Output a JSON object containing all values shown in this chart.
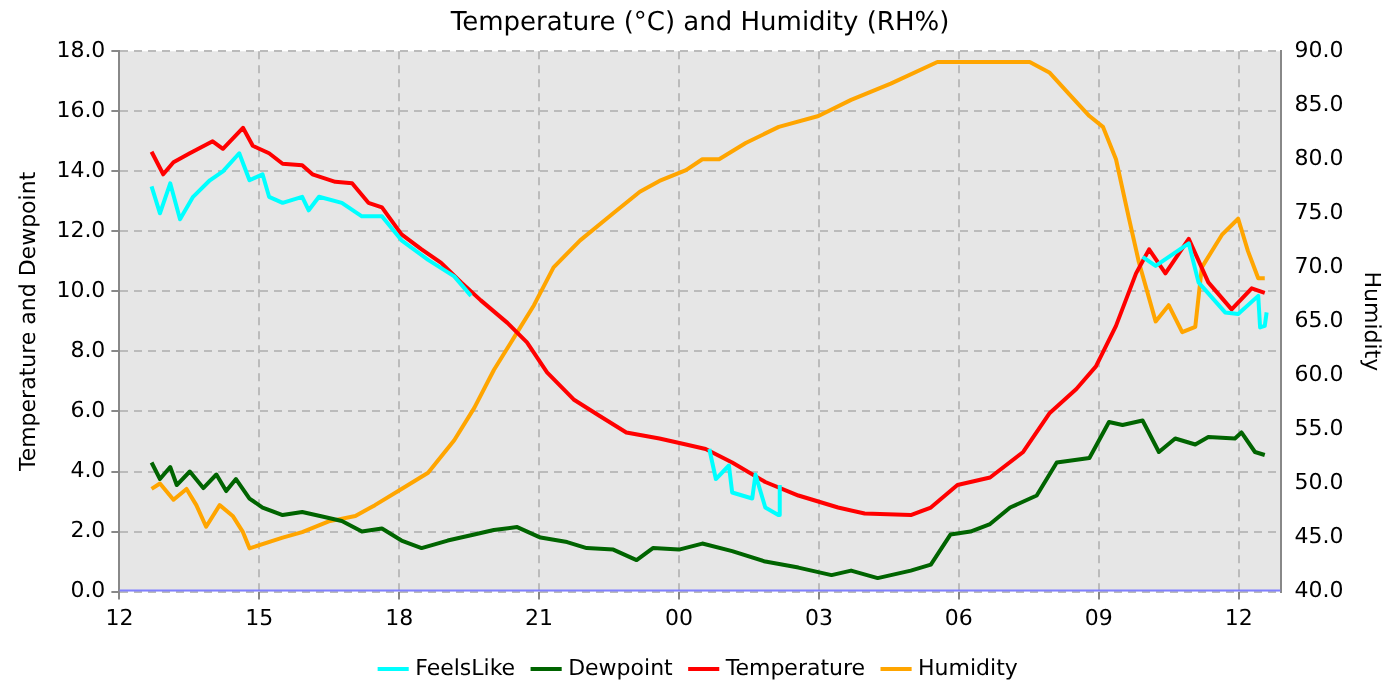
{
  "chart_data": {
    "type": "line",
    "title": "Temperature (°C) and Humidity (RH%)",
    "ylabel": "Temperature and Dewpoint",
    "y2label": "Humidity",
    "xlim": [
      12,
      36.9
    ],
    "xticks": [
      {
        "value": 12,
        "label": "12"
      },
      {
        "value": 15,
        "label": "15"
      },
      {
        "value": 18,
        "label": "18"
      },
      {
        "value": 21,
        "label": "21"
      },
      {
        "value": 24,
        "label": "00"
      },
      {
        "value": 27,
        "label": "03"
      },
      {
        "value": 30,
        "label": "06"
      },
      {
        "value": 33,
        "label": "09"
      },
      {
        "value": 36,
        "label": "12"
      }
    ],
    "ylim": [
      0,
      18
    ],
    "yticks": [
      {
        "value": 0,
        "label": "0.0"
      },
      {
        "value": 2,
        "label": "2.0"
      },
      {
        "value": 4,
        "label": "4.0"
      },
      {
        "value": 6,
        "label": "6.0"
      },
      {
        "value": 8,
        "label": "8.0"
      },
      {
        "value": 10,
        "label": "10.0"
      },
      {
        "value": 12,
        "label": "12.0"
      },
      {
        "value": 14,
        "label": "14.0"
      },
      {
        "value": 16,
        "label": "16.0"
      },
      {
        "value": 18,
        "label": "18.0"
      }
    ],
    "y2lim": [
      40,
      90
    ],
    "y2ticks": [
      {
        "value": 40,
        "label": "40.0"
      },
      {
        "value": 45,
        "label": "45.0"
      },
      {
        "value": 50,
        "label": "50.0"
      },
      {
        "value": 55,
        "label": "55.0"
      },
      {
        "value": 60,
        "label": "60.0"
      },
      {
        "value": 65,
        "label": "65.0"
      },
      {
        "value": 70,
        "label": "70.0"
      },
      {
        "value": 75,
        "label": "75.0"
      },
      {
        "value": 80,
        "label": "80.0"
      },
      {
        "value": 85,
        "label": "85.0"
      },
      {
        "value": 90,
        "label": "90.0"
      }
    ],
    "grid": true,
    "legend": "bottom",
    "marker": "none",
    "line_style": "solid",
    "series": [
      {
        "name": "FeelsLike",
        "color": "#00ffff",
        "x": [
          12.69,
          12.87,
          13.09,
          13.3,
          13.58,
          13.94,
          14.22,
          14.57,
          14.79,
          15.07,
          15.21,
          15.5,
          15.92,
          16.06,
          16.28,
          16.77,
          17.2,
          17.63,
          18.05,
          18.62,
          19.18,
          19.54,
          22,
          24.65,
          24.79,
          25.07,
          25.14,
          25.57,
          25.64,
          25.85,
          26.13,
          26.16,
          30,
          33.94,
          34.22,
          34.93,
          35.14,
          35.71,
          35.99,
          36.42,
          36.46,
          36.56,
          36.6
        ],
        "values": [
          13.5,
          12.6,
          13.6,
          12.4,
          13.15,
          13.7,
          14.0,
          14.6,
          13.7,
          13.9,
          13.15,
          12.95,
          13.15,
          12.7,
          13.15,
          12.95,
          12.5,
          12.5,
          11.7,
          11.05,
          10.5,
          9.85,
          null,
          4.75,
          3.75,
          4.2,
          3.3,
          3.1,
          3.9,
          2.8,
          2.55,
          3.55,
          null,
          11.15,
          10.85,
          11.6,
          10.3,
          9.3,
          9.25,
          9.85,
          8.8,
          8.85,
          9.3
        ]
      },
      {
        "name": "Dewpoint",
        "color": "#006400",
        "x": [
          12.69,
          12.87,
          13.09,
          13.23,
          13.51,
          13.8,
          14.08,
          14.29,
          14.5,
          14.79,
          15.07,
          15.5,
          15.92,
          16.35,
          16.77,
          17.2,
          17.63,
          18.05,
          18.48,
          19.04,
          19.61,
          20.03,
          20.53,
          21.03,
          21.6,
          22.02,
          22.59,
          23.09,
          23.44,
          24.0,
          24.5,
          25.14,
          25.85,
          26.56,
          27.27,
          27.69,
          28.26,
          28.97,
          29.4,
          29.82,
          30.25,
          30.67,
          31.1,
          31.67,
          32.1,
          32.8,
          33.22,
          33.51,
          33.94,
          34.29,
          34.64,
          35.07,
          35.35,
          35.92,
          36.06,
          36.35,
          36.56
        ],
        "values": [
          4.3,
          3.75,
          4.15,
          3.55,
          4.0,
          3.45,
          3.9,
          3.35,
          3.75,
          3.1,
          2.8,
          2.55,
          2.65,
          2.5,
          2.35,
          2.0,
          2.1,
          1.7,
          1.45,
          1.7,
          1.9,
          2.05,
          2.15,
          1.8,
          1.65,
          1.45,
          1.4,
          1.05,
          1.45,
          1.4,
          1.6,
          1.35,
          1.0,
          0.8,
          0.55,
          0.7,
          0.45,
          0.7,
          0.9,
          1.9,
          2.0,
          2.25,
          2.8,
          3.2,
          4.3,
          4.45,
          5.65,
          5.55,
          5.7,
          4.65,
          5.1,
          4.9,
          5.15,
          5.1,
          5.3,
          4.65,
          4.55
        ]
      },
      {
        "name": "Temperature",
        "color": "#ff0000",
        "x": [
          12.69,
          12.94,
          13.16,
          13.51,
          14.0,
          14.22,
          14.65,
          14.86,
          15.21,
          15.5,
          15.92,
          16.14,
          16.63,
          16.99,
          17.34,
          17.63,
          18.05,
          18.48,
          18.9,
          19.33,
          19.75,
          20.32,
          20.74,
          21.17,
          21.74,
          22.3,
          22.87,
          23.58,
          24.15,
          24.57,
          25.14,
          25.85,
          26.56,
          27.41,
          27.98,
          28.97,
          29.4,
          29.97,
          30.67,
          31.38,
          31.95,
          32.52,
          32.94,
          33.37,
          33.8,
          34.08,
          34.43,
          34.93,
          35.35,
          35.85,
          36.28,
          36.56
        ],
        "values": [
          14.65,
          13.9,
          14.3,
          14.6,
          15.0,
          14.75,
          15.45,
          14.85,
          14.6,
          14.25,
          14.2,
          13.9,
          13.65,
          13.6,
          12.95,
          12.8,
          11.9,
          11.4,
          10.95,
          10.3,
          9.7,
          8.95,
          8.3,
          7.3,
          6.4,
          5.85,
          5.3,
          5.1,
          4.9,
          4.75,
          4.3,
          3.65,
          3.2,
          2.8,
          2.6,
          2.55,
          2.8,
          3.55,
          3.8,
          4.65,
          5.95,
          6.75,
          7.5,
          8.85,
          10.6,
          11.4,
          10.6,
          11.75,
          10.3,
          9.4,
          10.1,
          9.95
        ]
      },
      {
        "color": "#8080ff",
        "x": [
          12,
          36.9
        ],
        "values": [
          0,
          0
        ]
      },
      {
        "name": "Humidity",
        "color": "#ffa500",
        "axis": "y2",
        "x": [
          12.69,
          12.87,
          13.16,
          13.44,
          13.65,
          13.86,
          14.15,
          14.43,
          14.65,
          14.79,
          15.5,
          15.92,
          16.49,
          17.06,
          17.48,
          18.05,
          18.62,
          19.18,
          19.61,
          20.03,
          20.46,
          20.89,
          21.31,
          21.88,
          22.59,
          23.16,
          23.58,
          24.15,
          24.5,
          24.86,
          25.43,
          26.14,
          26.99,
          27.69,
          28.54,
          29.54,
          31.52,
          31.95,
          32.37,
          32.8,
          33.09,
          33.37,
          33.65,
          33.86,
          34.22,
          34.5,
          34.79,
          35.07,
          35.21,
          35.64,
          35.99,
          36.2,
          36.42,
          36.56
        ],
        "values": [
          49.5,
          50,
          48.5,
          49.5,
          48,
          46,
          48,
          47,
          45.5,
          44,
          45,
          45.5,
          46.5,
          47,
          48,
          49.5,
          51,
          54,
          57,
          60.5,
          63.5,
          66.5,
          70,
          72.5,
          75,
          77,
          78,
          79,
          80,
          80,
          81.5,
          83,
          84,
          85.5,
          87,
          89,
          89,
          88,
          86,
          84,
          83,
          80,
          74.5,
          70.5,
          65,
          66.5,
          64,
          64.5,
          70,
          73,
          74.5,
          71.5,
          69,
          69
        ]
      }
    ]
  }
}
